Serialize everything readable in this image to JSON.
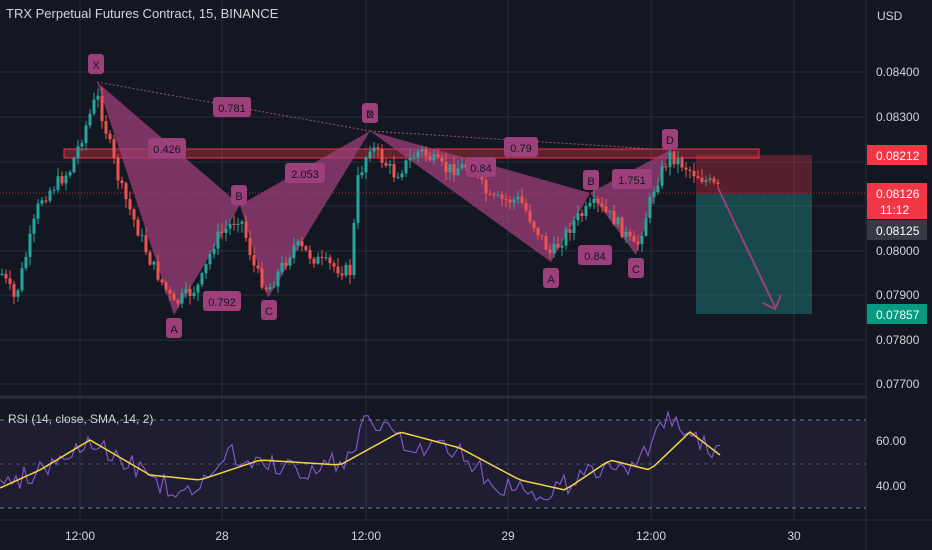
{
  "header": {
    "title": "TRX Perpetual Futures Contract, 15, BINANCE"
  },
  "price_axis": {
    "currency": "USD",
    "ticks": [
      "0.08400",
      "0.08300",
      "0.08200",
      "0.08100",
      "0.08000",
      "0.07900",
      "0.07800",
      "0.07700"
    ]
  },
  "price_tags": [
    {
      "value": "0.08212",
      "color": "#f23645"
    },
    {
      "value": "0.08126",
      "color": "#f23645"
    },
    {
      "value": "11:12",
      "color": "#f23645"
    },
    {
      "value": "0.08125",
      "color": "#363a45"
    },
    {
      "value": "0.07857",
      "color": "#089981"
    }
  ],
  "time_axis": {
    "ticks": [
      "12:00",
      "28",
      "12:00",
      "29",
      "12:00",
      "30"
    ]
  },
  "rsi": {
    "title": "RSI (14, close, SMA, 14, 2)",
    "ticks": [
      "60.00",
      "40.00"
    ]
  },
  "patterns": {
    "points": {
      "X": "X",
      "A1": "A",
      "B1": "B",
      "C1": "C",
      "D1": "D",
      "A2": "A",
      "B2": "B",
      "C2": "C",
      "D2": "D"
    },
    "ratios": [
      "0.426",
      "0.781",
      "2.053",
      "0.792",
      "0.79",
      "0.84",
      "1.751",
      "0.84"
    ]
  },
  "chart_data": {
    "type": "candlestick",
    "title": "TRX Perpetual Futures Contract, 15, BINANCE",
    "symbol": "TRX Perpetual Futures Contract",
    "interval": "15",
    "exchange": "BINANCE",
    "currency": "USD",
    "ylim": [
      0.0765,
      0.0853
    ],
    "current_price": 0.08126,
    "countdown": "11:12",
    "levels": {
      "resistance": 0.08212,
      "entry": 0.08125,
      "target": 0.07857
    },
    "harmonic_1": {
      "X": 0.08372,
      "A": 0.0783,
      "B": 0.081,
      "C": 0.07885,
      "D": 0.08265
    },
    "harmonic_2": {
      "X": 0.08265,
      "A": 0.0797,
      "B": 0.08075,
      "C": 0.07985,
      "D": 0.08225
    },
    "rsi": {
      "period": 14,
      "source": "close",
      "ma": "SMA",
      "ma_period": 14,
      "ticks": [
        60,
        40
      ],
      "band": [
        70,
        30
      ]
    }
  }
}
